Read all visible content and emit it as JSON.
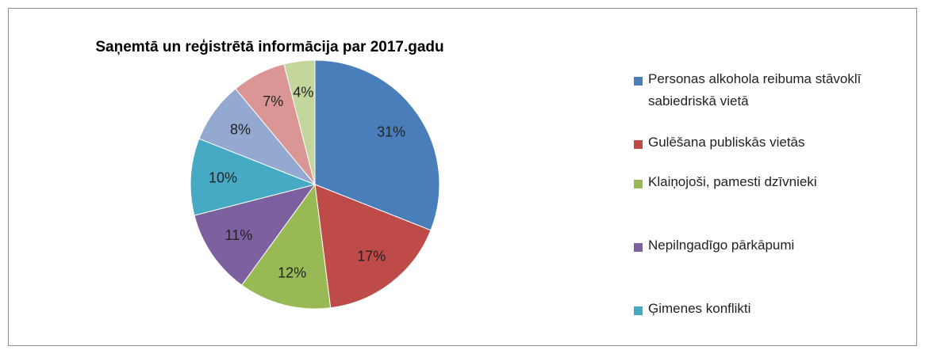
{
  "chart_data": {
    "type": "pie",
    "title": "Saņemtā un reģistrētā informācija par 2017.gadu",
    "categories": [
      "Personas alkohola reibuma stāvoklī sabiedriskā vietā",
      "Gulēšana publiskās vietās",
      "Klaiņojoši, pamesti dzīvnieki",
      "Nepilngadīgo pārkāpumi",
      "Ģimenes konflikti",
      null,
      null,
      null
    ],
    "values": [
      31,
      17,
      12,
      11,
      10,
      8,
      7,
      4
    ],
    "value_labels": [
      "31%",
      "17%",
      "12%",
      "11%",
      "10%",
      "8%",
      "7%",
      "4%"
    ],
    "colors": [
      "#4a7ebb",
      "#be4b48",
      "#98b954",
      "#7d60a0",
      "#46aac5",
      "#94a9d0",
      "#d99694",
      "#c3d69b"
    ],
    "legend": "right"
  }
}
